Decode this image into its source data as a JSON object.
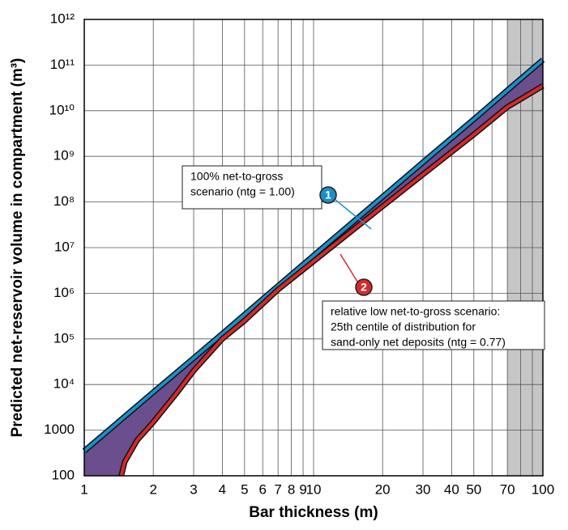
{
  "chart_data": {
    "type": "line",
    "x_label": "Bar thickness (m)",
    "y_label": "Predicted net-reservoir volume in compartment (m³)",
    "x_scale": "log",
    "y_scale": "log",
    "xlim": [
      1,
      100
    ],
    "ylim": [
      100,
      1000000000000
    ],
    "xticks": [
      1,
      2,
      3,
      4,
      5,
      6,
      7,
      8,
      9,
      10,
      20,
      30,
      40,
      50,
      70,
      100
    ],
    "x_minor_grid": [
      60,
      80,
      90
    ],
    "yticks": [
      100,
      1000,
      {
        "value": 10000,
        "label": "10⁴"
      },
      {
        "value": 100000,
        "label": "10⁵"
      },
      {
        "value": 1000000,
        "label": "10⁶"
      },
      {
        "value": 10000000,
        "label": "10⁷"
      },
      {
        "value": 100000000,
        "label": "10⁸"
      },
      {
        "value": 1000000000,
        "label": "10⁹"
      },
      {
        "value": 10000000000,
        "label": "10¹⁰"
      },
      {
        "value": 100000000000,
        "label": "10¹¹"
      },
      {
        "value": 1000000000000,
        "label": "10¹²"
      }
    ],
    "grid": true,
    "shaded_xrange": [
      70,
      100
    ],
    "shaded_color": "#c6c6c6",
    "fill_between_color": "#6b4e8e",
    "series": [
      {
        "color": "#1b8fc8",
        "x": [
          1,
          2,
          3,
          4,
          5,
          7,
          10,
          20,
          30,
          50,
          70,
          100
        ],
        "values": [
          350,
          6800,
          38000,
          130000,
          340000,
          1450000,
          6700000,
          130000000,
          740000000,
          6500000000,
          28000000000,
          130000000000
        ]
      },
      {
        "color": "#d42a2a",
        "x": [
          1.45,
          1.5,
          1.7,
          2,
          2.5,
          3,
          4,
          5,
          7,
          10,
          20,
          30,
          50,
          70,
          100
        ],
        "values": [
          100,
          200,
          600,
          1500,
          6000,
          20000,
          100000,
          250000,
          1200000,
          5000000,
          80000000,
          400000000,
          3000000000,
          12000000000,
          35000000000
        ]
      }
    ],
    "annotations": [
      {
        "marker": "1",
        "lines": [
          "100% net-to-gross",
          "scenario (ntg = 1.00)"
        ]
      },
      {
        "marker": "2",
        "lines": [
          "relative low net-to-gross scenario:",
          "25th centile of distribution for",
          "sand-only net deposits (ntg = 0.77)"
        ]
      }
    ]
  }
}
